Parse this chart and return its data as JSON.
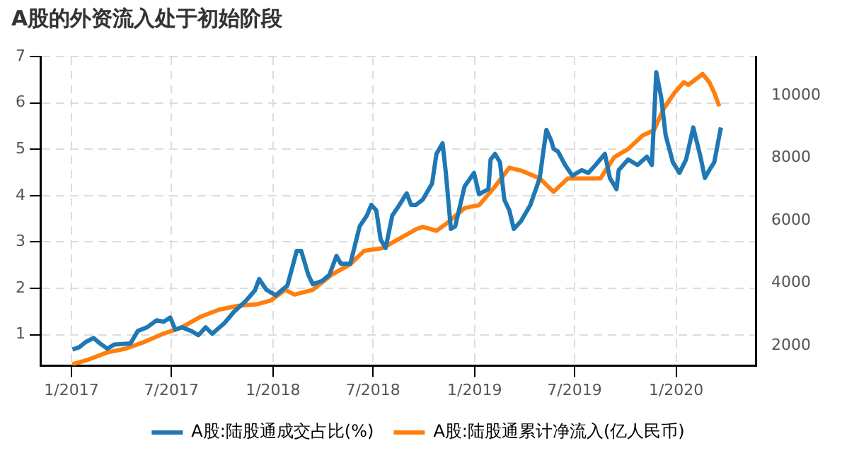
{
  "chart_data": {
    "type": "line",
    "title": "A股的外资流入处于初始阶段",
    "xlim": [
      "2016-11-07",
      "2020-05-24"
    ],
    "xticks": [
      {
        "value": "2017-01-01",
        "label": "1/2017"
      },
      {
        "value": "2017-07-01",
        "label": "7/2017"
      },
      {
        "value": "2018-01-01",
        "label": "1/2018"
      },
      {
        "value": "2018-07-01",
        "label": "7/2018"
      },
      {
        "value": "2019-01-01",
        "label": "1/2019"
      },
      {
        "value": "2019-07-01",
        "label": "7/2019"
      },
      {
        "value": "2020-01-01",
        "label": "1/2020"
      }
    ],
    "ylim": [
      0.33,
      7
    ],
    "yticks": [
      1,
      2,
      3,
      4,
      5,
      6,
      7
    ],
    "y2lim": [
      1350,
      11250
    ],
    "y2ticks": [
      2000,
      4000,
      6000,
      8000,
      10000
    ],
    "grid": true,
    "legend": "bottom",
    "marker": "none",
    "line_style": "solid",
    "series": [
      {
        "name": "A股:陆股通成交占比(%)",
        "color": "#1f77b4",
        "x": [
          "2017-01-03",
          "2017-01-15",
          "2017-01-28",
          "2017-02-10",
          "2017-02-22",
          "2017-03-07",
          "2017-03-20",
          "2017-04-18",
          "2017-05-01",
          "2017-05-18",
          "2017-06-04",
          "2017-06-17",
          "2017-06-29",
          "2017-07-08",
          "2017-07-20",
          "2017-08-06",
          "2017-08-19",
          "2017-09-01",
          "2017-09-13",
          "2017-10-05",
          "2017-10-22",
          "2017-11-12",
          "2017-11-29",
          "2017-12-07",
          "2017-12-20",
          "2018-01-06",
          "2018-01-27",
          "2018-02-04",
          "2018-02-13",
          "2018-02-21",
          "2018-03-06",
          "2018-03-14",
          "2018-03-31",
          "2018-04-13",
          "2018-04-26",
          "2018-05-04",
          "2018-05-21",
          "2018-06-07",
          "2018-06-20",
          "2018-06-28",
          "2018-07-07",
          "2018-07-15",
          "2018-07-24",
          "2018-08-05",
          "2018-08-18",
          "2018-08-31",
          "2018-09-08",
          "2018-09-17",
          "2018-09-29",
          "2018-10-16",
          "2018-10-24",
          "2018-11-04",
          "2018-11-10",
          "2018-11-19",
          "2018-11-27",
          "2018-12-06",
          "2018-12-14",
          "2018-12-31",
          "2019-01-09",
          "2019-01-26",
          "2019-01-30",
          "2019-02-07",
          "2019-02-16",
          "2019-02-24",
          "2019-03-05",
          "2019-03-13",
          "2019-03-26",
          "2019-04-12",
          "2019-04-29",
          "2019-05-11",
          "2019-05-20",
          "2019-05-24",
          "2019-06-01",
          "2019-06-14",
          "2019-06-27",
          "2019-07-14",
          "2019-07-26",
          "2019-08-08",
          "2019-08-25",
          "2019-09-03",
          "2019-09-15",
          "2019-09-19",
          "2019-10-06",
          "2019-10-23",
          "2019-11-09",
          "2019-11-18",
          "2019-11-26",
          "2019-12-05",
          "2019-12-13",
          "2019-12-26",
          "2020-01-07",
          "2020-01-19",
          "2020-02-01",
          "2020-02-14",
          "2020-02-22",
          "2020-03-01",
          "2020-03-10",
          "2020-03-22"
        ],
        "values": [
          0.68,
          0.73,
          0.85,
          0.93,
          0.81,
          0.7,
          0.79,
          0.81,
          1.08,
          1.16,
          1.31,
          1.28,
          1.37,
          1.11,
          1.16,
          1.08,
          0.99,
          1.16,
          1.02,
          1.25,
          1.49,
          1.72,
          1.95,
          2.2,
          1.97,
          1.85,
          2.06,
          2.41,
          2.81,
          2.81,
          2.29,
          2.09,
          2.16,
          2.29,
          2.7,
          2.53,
          2.53,
          3.34,
          3.57,
          3.8,
          3.68,
          3.05,
          2.87,
          3.57,
          3.8,
          4.05,
          3.8,
          3.8,
          3.91,
          4.26,
          4.9,
          5.13,
          4.49,
          3.28,
          3.34,
          3.8,
          4.2,
          4.49,
          4.03,
          4.14,
          4.78,
          4.9,
          4.72,
          3.91,
          3.68,
          3.28,
          3.45,
          3.8,
          4.38,
          5.42,
          5.18,
          5.01,
          4.95,
          4.66,
          4.43,
          4.55,
          4.49,
          4.66,
          4.9,
          4.38,
          4.14,
          4.55,
          4.78,
          4.66,
          4.84,
          4.66,
          6.66,
          6.11,
          5.3,
          4.72,
          4.49,
          4.78,
          5.47,
          4.84,
          4.38,
          4.55,
          4.72,
          5.47
        ]
      },
      {
        "name": "A股:陆股通累计净流入(亿人民币)",
        "color": "#ff7f0e",
        "axis": "y2",
        "x": [
          "2017-01-03",
          "2017-02-01",
          "2017-03-07",
          "2017-04-10",
          "2017-05-14",
          "2017-06-17",
          "2017-07-20",
          "2017-08-23",
          "2017-09-26",
          "2017-10-30",
          "2017-12-03",
          "2017-12-28",
          "2018-01-23",
          "2018-02-09",
          "2018-03-14",
          "2018-04-17",
          "2018-05-21",
          "2018-06-15",
          "2018-07-19",
          "2018-08-22",
          "2018-09-17",
          "2018-09-29",
          "2018-10-24",
          "2018-11-10",
          "2018-12-14",
          "2019-01-09",
          "2019-02-03",
          "2019-03-05",
          "2019-03-26",
          "2019-04-29",
          "2019-05-24",
          "2019-06-19",
          "2019-07-14",
          "2019-08-17",
          "2019-09-11",
          "2019-10-06",
          "2019-11-01",
          "2019-11-22",
          "2019-12-09",
          "2019-12-29",
          "2020-01-15",
          "2020-01-23",
          "2020-02-18",
          "2020-03-01",
          "2020-03-10",
          "2020-03-19"
        ],
        "values": [
          1400,
          1550,
          1780,
          1900,
          2120,
          2380,
          2580,
          2920,
          3150,
          3270,
          3320,
          3440,
          3780,
          3630,
          3780,
          4260,
          4600,
          5030,
          5120,
          5460,
          5720,
          5800,
          5670,
          5890,
          6400,
          6490,
          7000,
          7690,
          7600,
          7350,
          6920,
          7350,
          7350,
          7350,
          8030,
          8290,
          8720,
          8890,
          9570,
          10090,
          10430,
          10340,
          10690,
          10430,
          10090,
          9660
        ]
      }
    ]
  }
}
